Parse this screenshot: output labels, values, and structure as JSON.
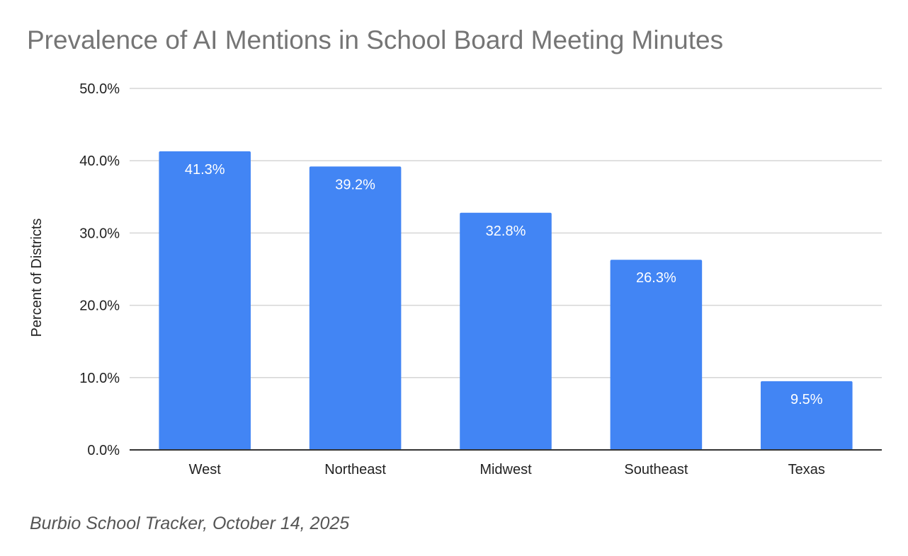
{
  "chart_data": {
    "type": "bar",
    "title": "Prevalence of AI Mentions in School Board Meeting Minutes",
    "ylabel": "Percent of Districts",
    "xlabel": "",
    "categories": [
      "West",
      "Northeast",
      "Midwest",
      "Southeast",
      "Texas"
    ],
    "values": [
      41.3,
      39.2,
      32.8,
      26.3,
      9.5
    ],
    "data_labels": [
      "41.3%",
      "39.2%",
      "32.8%",
      "26.3%",
      "9.5%"
    ],
    "ylim": [
      0,
      50
    ],
    "yticks": [
      0,
      10,
      20,
      30,
      40,
      50
    ],
    "ytick_labels": [
      "0.0%",
      "10.0%",
      "20.0%",
      "30.0%",
      "40.0%",
      "50.0%"
    ],
    "grid": true,
    "legend": "none",
    "bar_color": "#4285f4"
  },
  "source": "Burbio School Tracker, October 14, 2025"
}
